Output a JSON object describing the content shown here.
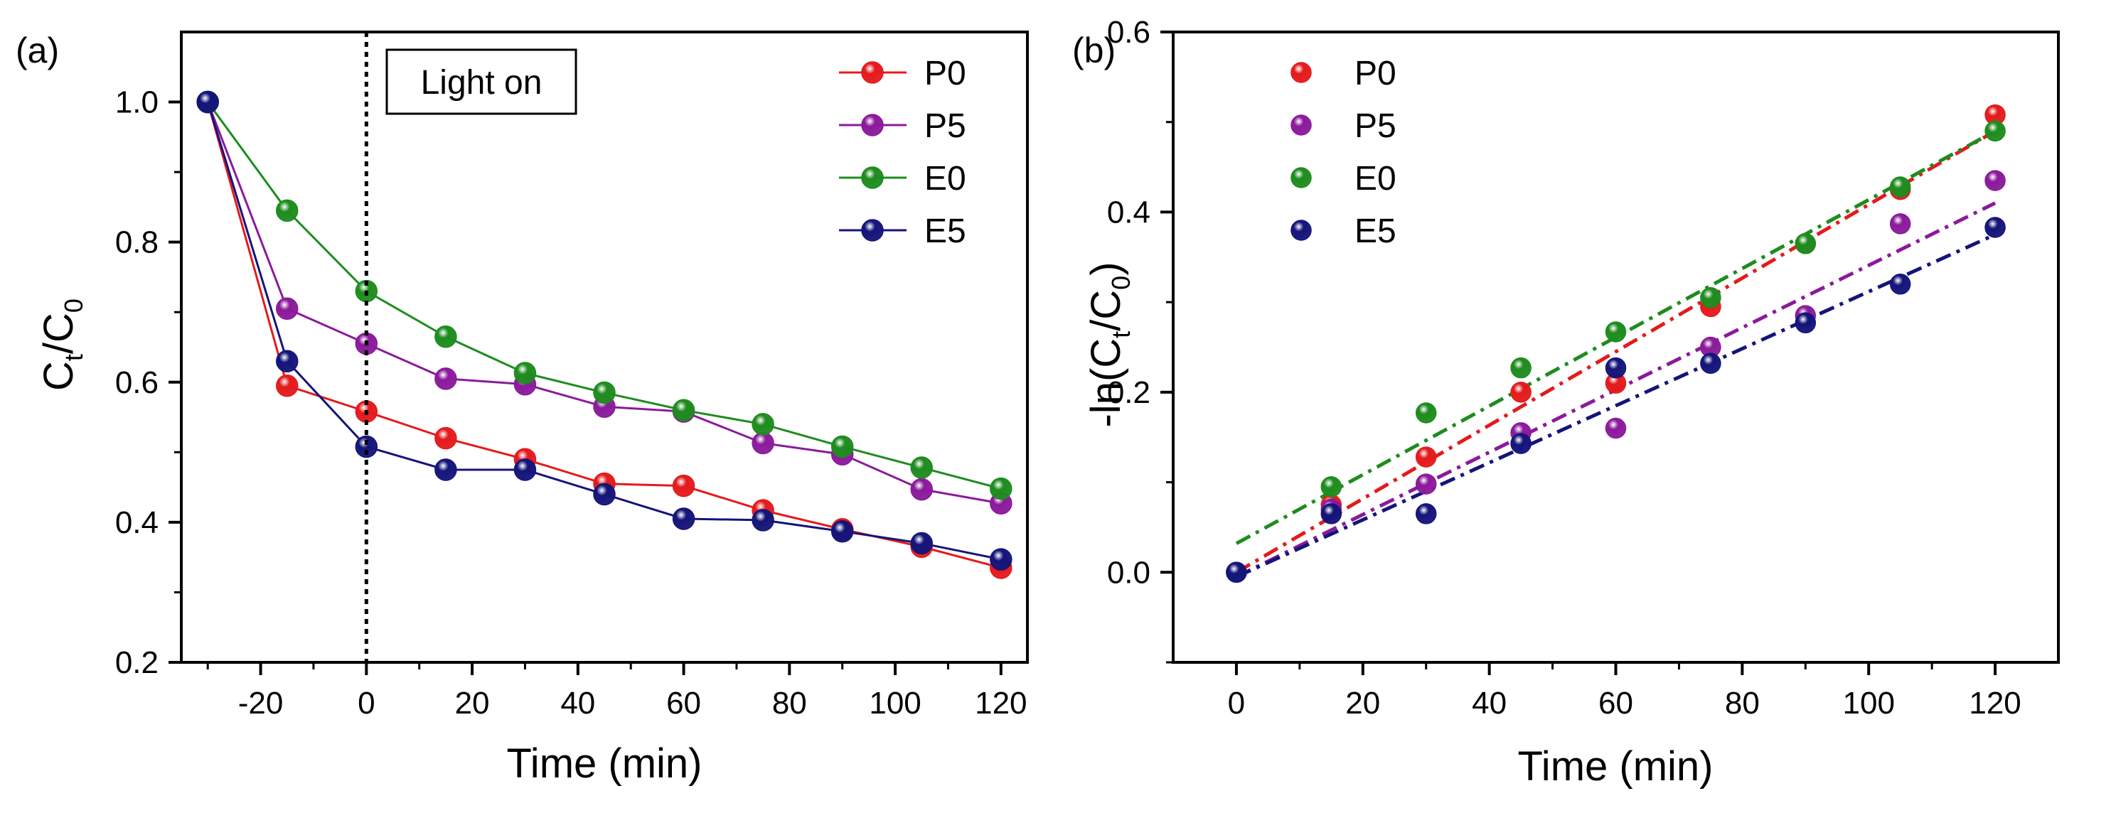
{
  "chart_data": [
    {
      "type": "line",
      "panel_label": "(a)",
      "xlabel": "Time (min)",
      "ylabel": {
        "main": "C",
        "sub1": "t",
        "mid": "/C",
        "sub2": "0"
      },
      "xlim": [
        -35,
        125
      ],
      "ylim": [
        0.2,
        1.1
      ],
      "xticks": [
        -20,
        0,
        20,
        40,
        60,
        80,
        100,
        120
      ],
      "yticks": [
        0.2,
        0.4,
        0.6,
        0.8,
        1.0
      ],
      "minor_xticks": [
        -30,
        -10,
        10,
        30,
        50,
        70,
        90,
        110
      ],
      "minor_yticks": [
        0.3,
        0.5,
        0.7,
        0.9
      ],
      "annotation": {
        "text": "Light on",
        "x": 0
      },
      "legend_position": "top-right",
      "x": [
        -30,
        -15,
        0,
        15,
        30,
        45,
        60,
        75,
        90,
        105,
        120
      ],
      "series": [
        {
          "name": "P0",
          "color": "#e41a1c",
          "values": [
            1.0,
            0.595,
            0.558,
            0.52,
            0.49,
            0.455,
            0.452,
            0.417,
            0.39,
            0.365,
            0.335
          ]
        },
        {
          "name": "P5",
          "color": "#8b1a9b",
          "values": [
            1.0,
            0.705,
            0.655,
            0.605,
            0.597,
            0.565,
            0.558,
            0.513,
            0.497,
            0.447,
            0.427
          ]
        },
        {
          "name": "E0",
          "color": "#1e8c1e",
          "values": [
            1.0,
            0.845,
            0.73,
            0.665,
            0.613,
            0.585,
            0.56,
            0.54,
            0.508,
            0.478,
            0.448
          ]
        },
        {
          "name": "E5",
          "color": "#14147a",
          "values": [
            1.0,
            0.63,
            0.508,
            0.475,
            0.475,
            0.44,
            0.405,
            0.403,
            0.387,
            0.37,
            0.347
          ]
        }
      ]
    },
    {
      "type": "scatter",
      "panel_label": "(b)",
      "xlabel": "Time (min)",
      "ylabel": {
        "pre": "-ln(C",
        "sub1": "t",
        "mid": "/C",
        "sub2": "0",
        "post": ")"
      },
      "xlim": [
        -10,
        130
      ],
      "ylim": [
        -0.1,
        0.6
      ],
      "xticks": [
        0,
        20,
        40,
        60,
        80,
        100,
        120
      ],
      "yticks": [
        0.0,
        0.2,
        0.4,
        0.6
      ],
      "minor_xticks": [
        10,
        30,
        50,
        70,
        90,
        110
      ],
      "minor_yticks": [
        -0.1,
        0.1,
        0.3,
        0.5
      ],
      "legend_position": "top-left",
      "x": [
        0,
        15,
        30,
        45,
        60,
        75,
        90,
        105,
        120
      ],
      "series": [
        {
          "name": "P0",
          "color": "#e41a1c",
          "values": [
            0.0,
            0.075,
            0.128,
            0.2,
            0.21,
            0.295,
            0.365,
            0.425,
            0.508
          ],
          "fit": [
            0.0,
            0.49
          ]
        },
        {
          "name": "P5",
          "color": "#8b1a9b",
          "values": [
            0.0,
            0.07,
            0.098,
            0.155,
            0.16,
            0.25,
            0.285,
            0.387,
            0.435
          ],
          "fit": [
            -0.005,
            0.41
          ]
        },
        {
          "name": "E0",
          "color": "#1e8c1e",
          "values": [
            0.0,
            0.095,
            0.177,
            0.227,
            0.267,
            0.305,
            0.365,
            0.428,
            0.49
          ],
          "fit": [
            0.032,
            0.49
          ]
        },
        {
          "name": "E5",
          "color": "#14147a",
          "values": [
            0.0,
            0.065,
            0.065,
            0.143,
            0.227,
            0.232,
            0.277,
            0.32,
            0.383
          ],
          "fit": [
            -0.005,
            0.375
          ]
        }
      ]
    }
  ]
}
